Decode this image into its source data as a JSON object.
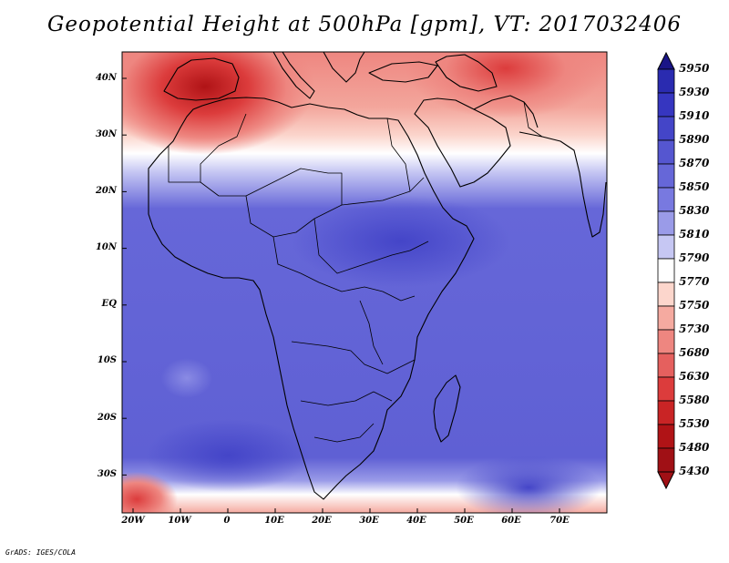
{
  "title": "Geopotential Height at 500hPa [gpm], VT: 2017032406",
  "credit": "GrADS: IGES/COLA",
  "lat_labels": [
    "40N",
    "30N",
    "20N",
    "10N",
    "EQ",
    "10S",
    "20S",
    "30S"
  ],
  "lon_labels": [
    "20W",
    "10W",
    "0",
    "10E",
    "20E",
    "30E",
    "40E",
    "50E",
    "60E",
    "70E"
  ],
  "colorbar": {
    "levels": [
      "5950",
      "5930",
      "5910",
      "5890",
      "5870",
      "5850",
      "5830",
      "5810",
      "5790",
      "5770",
      "5750",
      "5730",
      "5680",
      "5630",
      "5580",
      "5530",
      "5480",
      "5430"
    ],
    "colors": [
      "#1a1587",
      "#2a2bb0",
      "#3636c0",
      "#4445c8",
      "#5556d0",
      "#6667d8",
      "#7879e0",
      "#9a9be8",
      "#c6c7f3",
      "#ffffff",
      "#fcd6cc",
      "#f5aaa0",
      "#ee8680",
      "#e5605e",
      "#dc3c3c",
      "#c92425",
      "#b01316",
      "#a01015"
    ]
  },
  "map_extent": {
    "lon_min": -22,
    "lon_max": 80,
    "lat_min": -37,
    "lat_max": 45
  }
}
